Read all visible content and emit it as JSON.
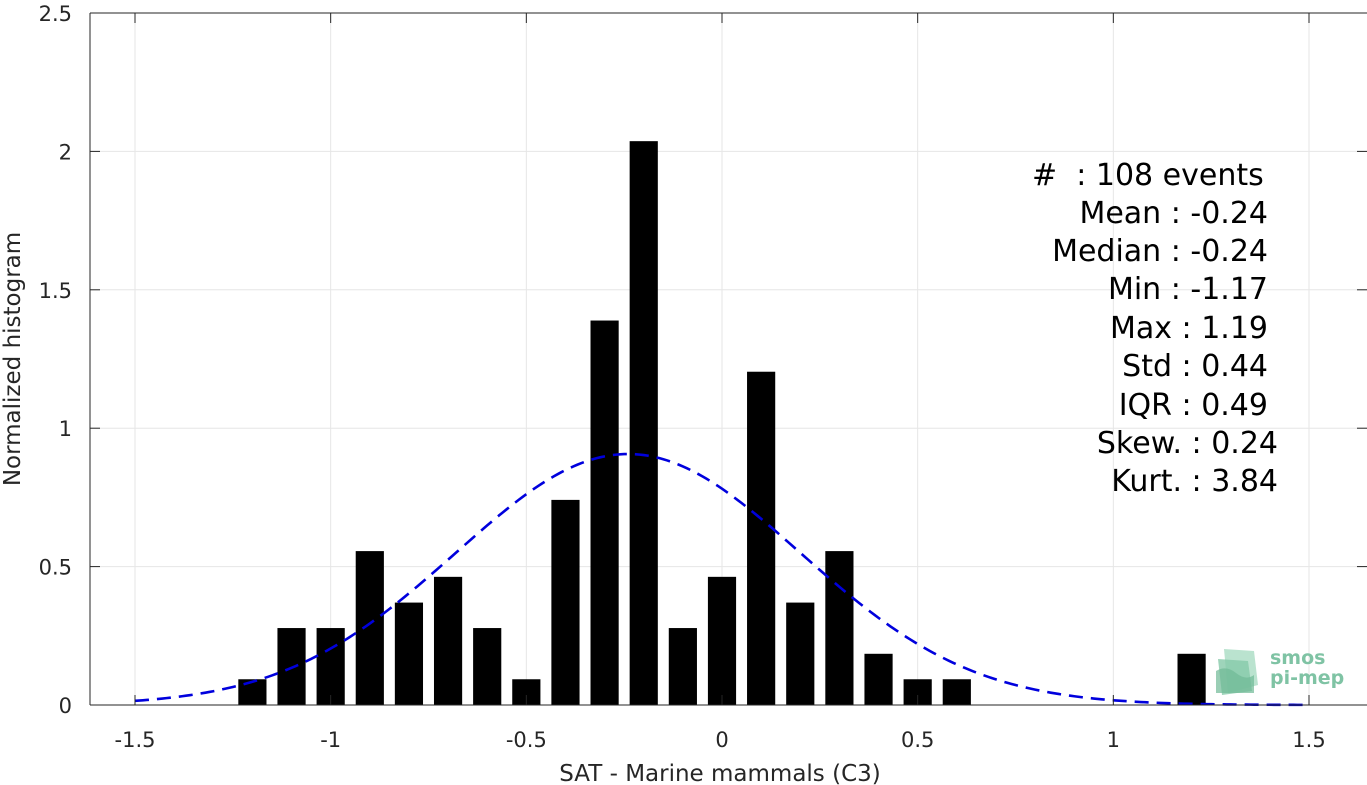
{
  "chart_data": {
    "type": "bar",
    "xlabel": "SAT - Marine mammals (C3)",
    "ylabel": "Normalized histogram",
    "xlim": [
      -1.5,
      1.5
    ],
    "ylim": [
      0,
      2.5
    ],
    "xticks": [
      -1.5,
      -1,
      -0.5,
      0,
      0.5,
      1,
      1.5
    ],
    "xtick_labels": [
      "-1.5",
      "-1",
      "-0.5",
      "0",
      "0.5",
      "1",
      "1.5"
    ],
    "yticks": [
      0,
      0.5,
      1,
      1.5,
      2,
      2.5
    ],
    "ytick_labels": [
      "0",
      "0.5",
      "1",
      "1.5",
      "2",
      "2.5"
    ],
    "grid": true,
    "bin_width": 0.1,
    "bars": {
      "x": [
        -1.2,
        -1.1,
        -1.0,
        -0.9,
        -0.8,
        -0.7,
        -0.6,
        -0.5,
        -0.4,
        -0.3,
        -0.2,
        -0.1,
        0.0,
        0.1,
        0.2,
        0.3,
        0.4,
        0.5,
        0.6,
        1.2
      ],
      "values": [
        0.093,
        0.278,
        0.278,
        0.556,
        0.37,
        0.463,
        0.278,
        0.093,
        0.741,
        1.389,
        2.037,
        0.278,
        0.463,
        1.204,
        0.37,
        0.556,
        0.185,
        0.093,
        0.093,
        0.185
      ],
      "color": "#000000"
    },
    "fit_curve": {
      "style": "dashed",
      "color": "#0000dd",
      "mean": -0.24,
      "std": 0.44,
      "x_range": [
        -1.5,
        1.5
      ]
    },
    "stats": [
      {
        "label": "#  : 108 events"
      },
      {
        "label": "Mean : -0.24"
      },
      {
        "label": "Median : -0.24"
      },
      {
        "label": "Min : -1.17"
      },
      {
        "label": "Max : 1.19"
      },
      {
        "label": "Std : 0.44"
      },
      {
        "label": "IQR : 0.49"
      },
      {
        "label": "Skew. : 0.24"
      },
      {
        "label": "Kurt. : 3.84"
      }
    ]
  },
  "logo": {
    "line1": "smos",
    "line2": "pi-mep",
    "color": "#7fc3a4"
  }
}
